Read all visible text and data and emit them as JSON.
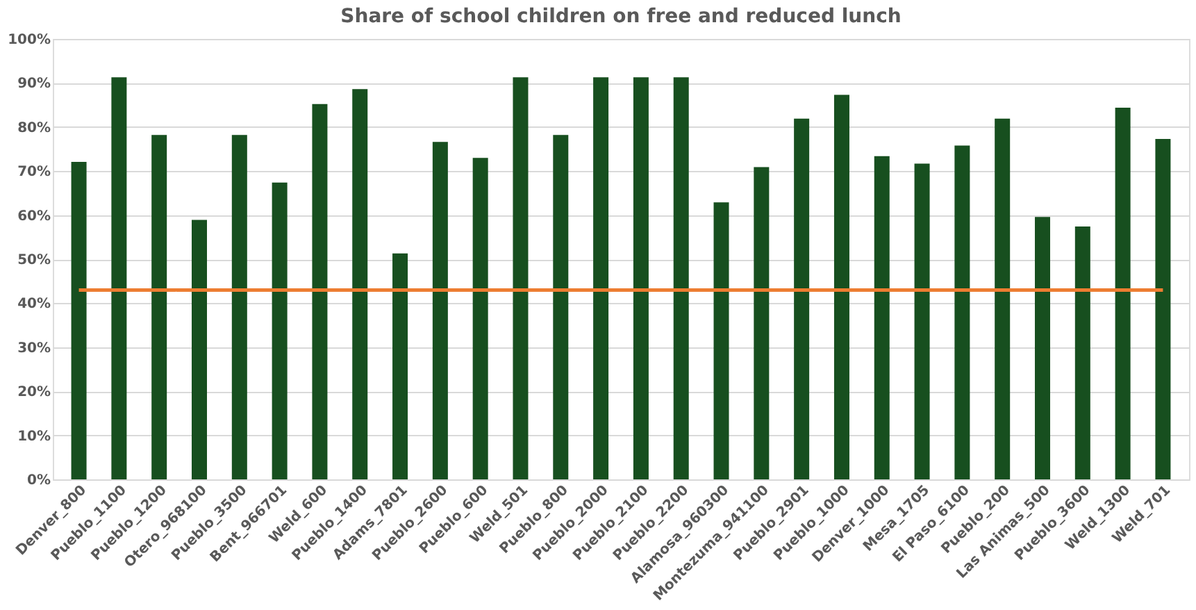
{
  "chart_data": {
    "type": "bar",
    "title": "Share of school children on free and reduced lunch",
    "categories": [
      "Denver_800",
      "Pueblo_1100",
      "Pueblo_1200",
      "Otero_968100",
      "Pueblo_3500",
      "Bent_966701",
      "Weld_600",
      "Pueblo_1400",
      "Adams_7801",
      "Pueblo_2600",
      "Pueblo_600",
      "Weld_501",
      "Pueblo_800",
      "Pueblo_2000",
      "Pueblo_2100",
      "Pueblo_2200",
      "Alamosa_960300",
      "Montezuma_941100",
      "Pueblo_2901",
      "Pueblo_1000",
      "Denver_1000",
      "Mesa_1705",
      "El Paso_6100",
      "Pueblo_200",
      "Las Animas_500",
      "Pueblo_3600",
      "Weld_1300",
      "Weld_701"
    ],
    "values": [
      72.1,
      91.3,
      78.2,
      58.9,
      78.2,
      67.4,
      85.2,
      88.6,
      51.3,
      76.6,
      73.0,
      91.3,
      78.2,
      91.3,
      91.3,
      91.3,
      62.9,
      70.9,
      81.9,
      87.3,
      73.4,
      71.7,
      75.8,
      81.9,
      59.6,
      57.4,
      84.4,
      77.3
    ],
    "color": "#174f1f",
    "ylim": [
      0,
      100
    ],
    "yticks": [
      {
        "value": 0,
        "label": "0%"
      },
      {
        "value": 10,
        "label": "10%"
      },
      {
        "value": 20,
        "label": "20%"
      },
      {
        "value": 30,
        "label": "30%"
      },
      {
        "value": 40,
        "label": "40%"
      },
      {
        "value": 50,
        "label": "50%"
      },
      {
        "value": 60,
        "label": "60%"
      },
      {
        "value": 70,
        "label": "70%"
      },
      {
        "value": 80,
        "label": "80%"
      },
      {
        "value": 90,
        "label": "90%"
      },
      {
        "value": 100,
        "label": "100%"
      }
    ],
    "ref_lines": [
      {
        "axis": "y",
        "value": 43,
        "color": "#ed7d31"
      }
    ],
    "grid": "y"
  }
}
